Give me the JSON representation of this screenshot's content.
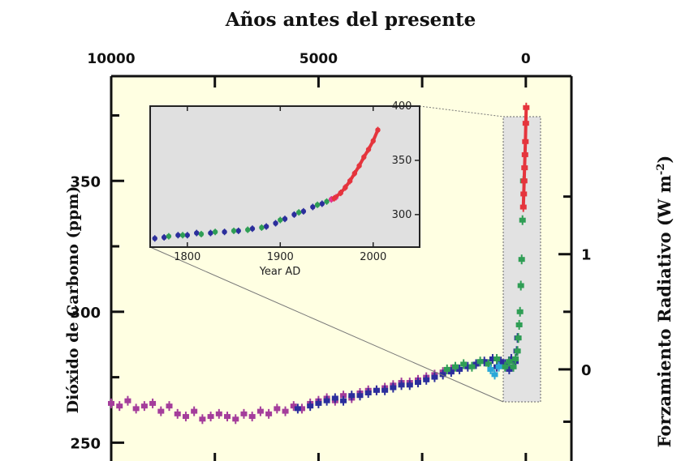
{
  "chart_data": [
    {
      "type": "scatter",
      "title": "Años antes del presente",
      "ylabel": "Dióxido de Carbono (ppm)",
      "ylabel_right": "Forzamiento Radiativo (W m",
      "ylabel_right_sup": "-2",
      "ylabel_right_close": ")",
      "x_ticks": [
        "10000",
        "5000",
        "0"
      ],
      "x_tick_values": [
        10000,
        5000,
        0
      ],
      "xlim": [
        10000,
        -1100
      ],
      "x_direction": "years before present, decreasing to the right",
      "y_ticks": [
        "250",
        "300",
        "350"
      ],
      "y_tick_values": [
        250,
        300,
        350
      ],
      "ylim": [
        243,
        390
      ],
      "y2_ticks": [
        "1",
        "0"
      ],
      "y2_tick_values": [
        1,
        0
      ],
      "y2_at_co2": [
        322,
        278
      ],
      "series": [
        {
          "color": "#a43d9b",
          "x": [
            10000,
            9800,
            9600,
            9400,
            9200,
            9000,
            8800,
            8600,
            8400,
            8200,
            8000,
            7800,
            7600,
            7400,
            7200,
            7000,
            6800,
            6600,
            6400,
            6200,
            6000,
            5800,
            5600,
            5400,
            5200,
            5000,
            4800,
            4600,
            4400,
            4200,
            4000,
            3800,
            3600,
            3400,
            3200,
            3000,
            2800,
            2600,
            2400,
            2200,
            2000,
            1800
          ],
          "y": [
            265,
            264,
            266,
            263,
            264,
            265,
            262,
            264,
            261,
            260,
            262,
            259,
            260,
            261,
            260,
            259,
            261,
            260,
            262,
            261,
            263,
            262,
            264,
            263,
            265,
            266,
            267,
            266,
            268,
            267,
            269,
            270,
            270,
            271,
            272,
            273,
            273,
            274,
            275,
            276,
            277,
            278
          ]
        },
        {
          "color": "#2b2e9c",
          "x": [
            5500,
            5200,
            5000,
            4800,
            4600,
            4400,
            4200,
            4000,
            3800,
            3600,
            3400,
            3200,
            3000,
            2800,
            2600,
            2400,
            2200,
            2000,
            1800,
            1600,
            1400,
            1200,
            1000,
            900,
            800,
            700,
            600,
            500,
            400,
            350,
            300,
            250,
            220,
            200
          ],
          "y": [
            263,
            264,
            265,
            266,
            267,
            266,
            268,
            268,
            269,
            270,
            270,
            271,
            272,
            272,
            273,
            274,
            275,
            276,
            277,
            278,
            279,
            280,
            281,
            280,
            282,
            279,
            281,
            280,
            278,
            282,
            279,
            281,
            285,
            290
          ]
        },
        {
          "color": "#2f9e55",
          "x": [
            1900,
            1700,
            1500,
            1300,
            1100,
            900,
            700,
            500,
            400,
            300,
            250,
            200,
            180,
            160,
            140,
            120,
            100,
            80,
            60
          ],
          "y": [
            278,
            279,
            280,
            279,
            281,
            280,
            282,
            279,
            281,
            279,
            282,
            285,
            290,
            295,
            300,
            310,
            320,
            335,
            350
          ]
        },
        {
          "color": "#e5353d",
          "x": [
            60,
            50,
            40,
            30,
            20,
            10,
            0,
            -10
          ],
          "y": [
            340,
            345,
            350,
            355,
            360,
            365,
            372,
            378
          ]
        },
        {
          "color": "#2aa8d8",
          "x": [
            850,
            750,
            650
          ],
          "y": [
            278,
            276,
            279
          ]
        }
      ]
    },
    {
      "type": "scatter",
      "xlabel": "Year AD",
      "x_ticks": [
        "1800",
        "1900",
        "2000"
      ],
      "x_tick_values": [
        1800,
        1900,
        2000
      ],
      "xlim": [
        1760,
        2050
      ],
      "y_ticks": [
        "300",
        "350",
        "400"
      ],
      "y_tick_values": [
        300,
        350,
        400
      ],
      "ylim": [
        270,
        400
      ],
      "series": [
        {
          "color": "#2b2e9c",
          "x": [
            1765,
            1775,
            1790,
            1800,
            1810,
            1825,
            1840,
            1855,
            1870,
            1885,
            1895,
            1905,
            1915,
            1925,
            1935,
            1945,
            1955
          ],
          "y": [
            278,
            279,
            281,
            281,
            283,
            283,
            284,
            285,
            287,
            289,
            292,
            296,
            300,
            303,
            307,
            310,
            314
          ]
        },
        {
          "color": "#2f9e55",
          "x": [
            1780,
            1795,
            1815,
            1830,
            1850,
            1865,
            1880,
            1900,
            1920,
            1940,
            1950
          ],
          "y": [
            280,
            281,
            282,
            284,
            285,
            286,
            288,
            295,
            302,
            309,
            312
          ]
        },
        {
          "color": "#e8358f",
          "x": [
            1955,
            1960,
            1965,
            1970,
            1975
          ],
          "y": [
            314,
            316,
            320,
            325,
            331
          ]
        },
        {
          "color": "#e5353d",
          "x": [
            1958,
            1965,
            1970,
            1975,
            1980,
            1985,
            1990,
            1995,
            2000,
            2005
          ],
          "y": [
            315,
            320,
            325,
            331,
            338,
            345,
            353,
            360,
            368,
            378
          ]
        }
      ]
    }
  ]
}
